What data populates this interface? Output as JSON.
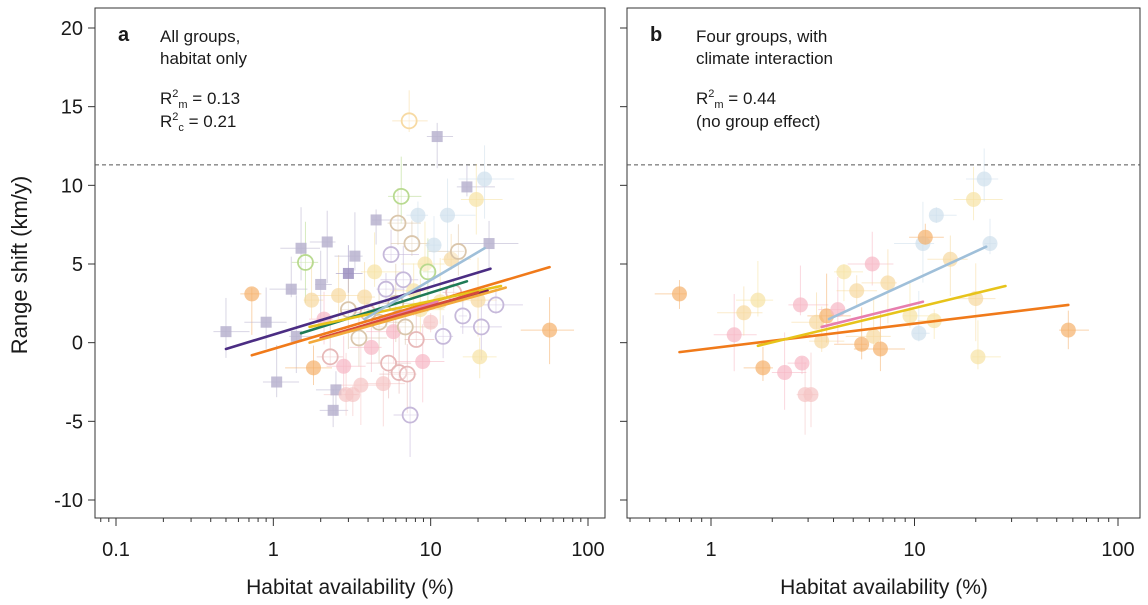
{
  "y_axis_label": "Range shift (km/y)",
  "y_ticks": [
    20,
    15,
    10,
    5,
    0,
    -5,
    -10
  ],
  "y_tick_labels": [
    "20",
    "15",
    "10",
    "5",
    "0",
    "-5",
    "-10"
  ],
  "x_ticks": [
    0.1,
    1,
    10,
    100
  ],
  "x_tick_labels": [
    "0.1",
    "1",
    "10",
    "100"
  ],
  "chart_data": [
    {
      "type": "scatter",
      "panel_letter": "a",
      "title_line1": "All groups,",
      "title_line2": "habitat only",
      "stat1_base": "R",
      "stat1_sup": "2",
      "stat1_sub": "m",
      "stat1_val": " = 0.13",
      "stat2_base": "R",
      "stat2_sup": "2",
      "stat2_sub": "c",
      "stat2_val": " = 0.21",
      "xlabel": "Habitat availability (%)",
      "ylabel": "Range shift (km/y)",
      "x_scale": "log",
      "xlim": [
        0.06,
        130
      ],
      "ylim": [
        -11,
        21
      ],
      "reference_line_y": 11.3,
      "points": [
        {
          "x": 0.73,
          "y": 3.1,
          "shape": "circle",
          "color": "#f5b06b"
        },
        {
          "x": 0.5,
          "y": 0.7,
          "shape": "square",
          "color": "#b9b3cf"
        },
        {
          "x": 0.9,
          "y": 1.3,
          "shape": "square",
          "color": "#b9b3cf"
        },
        {
          "x": 1.05,
          "y": -2.5,
          "shape": "square",
          "color": "#b9b3cf"
        },
        {
          "x": 1.3,
          "y": 3.4,
          "shape": "square",
          "color": "#b9b3cf"
        },
        {
          "x": 1.4,
          "y": 0.4,
          "shape": "square",
          "color": "#b9b3cf"
        },
        {
          "x": 1.5,
          "y": 6.0,
          "shape": "square",
          "color": "#b9b3cf"
        },
        {
          "x": 1.6,
          "y": 5.1,
          "shape": "open",
          "color": "#b6d98c"
        },
        {
          "x": 1.75,
          "y": 2.7,
          "shape": "circle",
          "color": "#f7d9a0"
        },
        {
          "x": 1.8,
          "y": -1.6,
          "shape": "circle",
          "color": "#f5b06b"
        },
        {
          "x": 2.0,
          "y": 3.7,
          "shape": "square",
          "color": "#b9b3cf"
        },
        {
          "x": 2.1,
          "y": 1.5,
          "shape": "circle",
          "color": "#f7b7c4"
        },
        {
          "x": 2.3,
          "y": -0.9,
          "shape": "open",
          "color": "#e6b6b6"
        },
        {
          "x": 2.2,
          "y": 6.4,
          "shape": "square",
          "color": "#b9b3cf"
        },
        {
          "x": 2.4,
          "y": -4.3,
          "shape": "square",
          "color": "#b9b3cf"
        },
        {
          "x": 2.5,
          "y": -3.0,
          "shape": "square",
          "color": "#b9b3cf"
        },
        {
          "x": 2.6,
          "y": 3.0,
          "shape": "circle",
          "color": "#f7d9a0"
        },
        {
          "x": 2.8,
          "y": -1.5,
          "shape": "circle",
          "color": "#f7b7c4"
        },
        {
          "x": 2.9,
          "y": -3.3,
          "shape": "circle",
          "color": "#f5c4c4"
        },
        {
          "x": 3.0,
          "y": 4.4,
          "shape": "square",
          "color": "#9b8fbf"
        },
        {
          "x": 3.0,
          "y": 2.1,
          "shape": "open",
          "color": "#d9c4a8"
        },
        {
          "x": 3.2,
          "y": -3.3,
          "shape": "circle",
          "color": "#f5c4c4"
        },
        {
          "x": 3.3,
          "y": 5.5,
          "shape": "square",
          "color": "#b9b3cf"
        },
        {
          "x": 3.5,
          "y": 0.3,
          "shape": "open",
          "color": "#d9c4a8"
        },
        {
          "x": 3.6,
          "y": -2.7,
          "shape": "circle",
          "color": "#f5c4c4"
        },
        {
          "x": 3.8,
          "y": 2.9,
          "shape": "circle",
          "color": "#f7d9a0"
        },
        {
          "x": 4.0,
          "y": 1.9,
          "shape": "open",
          "color": "#e6b6b6"
        },
        {
          "x": 4.2,
          "y": -0.3,
          "shape": "circle",
          "color": "#f7b7c4"
        },
        {
          "x": 4.4,
          "y": 4.5,
          "shape": "circle",
          "color": "#f7e3a4"
        },
        {
          "x": 4.5,
          "y": 7.8,
          "shape": "square",
          "color": "#b9b3cf"
        },
        {
          "x": 4.7,
          "y": 1.3,
          "shape": "open",
          "color": "#d9c4a8"
        },
        {
          "x": 5.0,
          "y": -2.6,
          "shape": "circle",
          "color": "#f5c4c4"
        },
        {
          "x": 5.2,
          "y": 3.4,
          "shape": "open",
          "color": "#c4b6d9"
        },
        {
          "x": 5.4,
          "y": -1.3,
          "shape": "open",
          "color": "#e6b6b6"
        },
        {
          "x": 5.6,
          "y": 5.6,
          "shape": "open",
          "color": "#c4b6d9"
        },
        {
          "x": 5.8,
          "y": 0.7,
          "shape": "circle",
          "color": "#f7b7c4"
        },
        {
          "x": 6.0,
          "y": 2.5,
          "shape": "open",
          "color": "#d9c4a8"
        },
        {
          "x": 6.2,
          "y": 7.6,
          "shape": "open",
          "color": "#d9c4a8"
        },
        {
          "x": 6.3,
          "y": -1.9,
          "shape": "open",
          "color": "#e6b6b6"
        },
        {
          "x": 6.5,
          "y": 9.3,
          "shape": "open",
          "color": "#b6d98c"
        },
        {
          "x": 6.7,
          "y": 4.0,
          "shape": "open",
          "color": "#c4b6d9"
        },
        {
          "x": 6.9,
          "y": 1.0,
          "shape": "open",
          "color": "#d9c4a8"
        },
        {
          "x": 7.1,
          "y": -2.0,
          "shape": "open",
          "color": "#e6b6b6"
        },
        {
          "x": 7.3,
          "y": 14.1,
          "shape": "open",
          "color": "#f7d9a0"
        },
        {
          "x": 7.4,
          "y": -4.6,
          "shape": "open",
          "color": "#c4b6d9"
        },
        {
          "x": 7.6,
          "y": 6.3,
          "shape": "open",
          "color": "#d9c4a8"
        },
        {
          "x": 7.8,
          "y": 3.3,
          "shape": "circle",
          "color": "#f7e3a4"
        },
        {
          "x": 8.1,
          "y": 0.2,
          "shape": "open",
          "color": "#e6b6b6"
        },
        {
          "x": 8.3,
          "y": 8.1,
          "shape": "circle",
          "color": "#cfe0ec"
        },
        {
          "x": 8.6,
          "y": 2.1,
          "shape": "circle",
          "color": "#f7e3a4"
        },
        {
          "x": 8.9,
          "y": -1.2,
          "shape": "circle",
          "color": "#f7b7c4"
        },
        {
          "x": 9.2,
          "y": 5.0,
          "shape": "circle",
          "color": "#f7e3a4"
        },
        {
          "x": 9.6,
          "y": 4.5,
          "shape": "open",
          "color": "#b6d98c"
        },
        {
          "x": 10.0,
          "y": 1.3,
          "shape": "circle",
          "color": "#f5c4c4"
        },
        {
          "x": 10.5,
          "y": 6.2,
          "shape": "circle",
          "color": "#cfe0ec"
        },
        {
          "x": 11.0,
          "y": 13.1,
          "shape": "square",
          "color": "#b9b3cf"
        },
        {
          "x": 11.5,
          "y": 2.6,
          "shape": "circle",
          "color": "#f7e3a4"
        },
        {
          "x": 12.0,
          "y": 0.4,
          "shape": "open",
          "color": "#c4b6d9"
        },
        {
          "x": 12.8,
          "y": 8.1,
          "shape": "circle",
          "color": "#cfe0ec"
        },
        {
          "x": 13.5,
          "y": 5.3,
          "shape": "circle",
          "color": "#f7d9a0"
        },
        {
          "x": 14.0,
          "y": 3.2,
          "shape": "open",
          "color": "#e6b6b6"
        },
        {
          "x": 15.0,
          "y": 5.8,
          "shape": "open",
          "color": "#d9c4a8"
        },
        {
          "x": 16.0,
          "y": 1.7,
          "shape": "open",
          "color": "#c4b6d9"
        },
        {
          "x": 17.0,
          "y": 9.9,
          "shape": "square",
          "color": "#b9b3cf"
        },
        {
          "x": 19.5,
          "y": 9.1,
          "shape": "circle",
          "color": "#f7e3a4"
        },
        {
          "x": 20.0,
          "y": 2.7,
          "shape": "circle",
          "color": "#f7d9a0"
        },
        {
          "x": 20.5,
          "y": -0.9,
          "shape": "circle",
          "color": "#f7e3a4"
        },
        {
          "x": 21.0,
          "y": 1.0,
          "shape": "open",
          "color": "#c4b6d9"
        },
        {
          "x": 22.0,
          "y": 10.4,
          "shape": "circle",
          "color": "#cfe0ec"
        },
        {
          "x": 23.5,
          "y": 6.3,
          "shape": "square",
          "color": "#b9b3cf"
        },
        {
          "x": 26.0,
          "y": 2.4,
          "shape": "open",
          "color": "#c4b6d9"
        },
        {
          "x": 57.0,
          "y": 0.8,
          "shape": "circle",
          "color": "#f5b06b"
        }
      ],
      "regression_lines": [
        {
          "x": [
            0.5,
            24
          ],
          "y": [
            -0.4,
            4.7
          ],
          "color": "#4b2d83"
        },
        {
          "x": [
            0.73,
            57
          ],
          "y": [
            -0.8,
            4.8
          ],
          "color": "#f07a1a"
        },
        {
          "x": [
            1.5,
            17
          ],
          "y": [
            0.6,
            3.9
          ],
          "color": "#1f7a55"
        },
        {
          "x": [
            1.7,
            28
          ],
          "y": [
            1.0,
            3.6
          ],
          "color": "#e7c31a"
        },
        {
          "x": [
            3.0,
            23
          ],
          "y": [
            0.7,
            3.3
          ],
          "color": "#7a1f52"
        },
        {
          "x": [
            3.8,
            22
          ],
          "y": [
            1.5,
            6.0
          ],
          "color": "#9fbfd9"
        },
        {
          "x": [
            3.5,
            11
          ],
          "y": [
            1.0,
            2.6
          ],
          "color": "#e77eae"
        },
        {
          "x": [
            2.0,
            20
          ],
          "y": [
            0.3,
            3.2
          ],
          "color": "#d64a3b"
        },
        {
          "x": [
            1.7,
            30
          ],
          "y": [
            0.0,
            3.5
          ],
          "color": "#f2a93b"
        }
      ]
    },
    {
      "type": "scatter",
      "panel_letter": "b",
      "title_line1": "Four groups, with",
      "title_line2": "climate interaction",
      "stat1_base": "R",
      "stat1_sup": "2",
      "stat1_sub": "m",
      "stat1_val": " = 0.44",
      "stat2_text": "(no group effect)",
      "xlabel": "Habitat availability (%)",
      "x_scale": "log",
      "xlim": [
        0.3,
        130
      ],
      "ylim": [
        -11,
        21
      ],
      "reference_line_y": 11.3,
      "points": [
        {
          "x": 0.7,
          "y": 3.1,
          "shape": "circle",
          "color": "#f5b06b"
        },
        {
          "x": 1.3,
          "y": 0.5,
          "shape": "circle",
          "color": "#f7b7c4"
        },
        {
          "x": 1.45,
          "y": 1.9,
          "shape": "circle",
          "color": "#f7d9a0"
        },
        {
          "x": 1.7,
          "y": 2.7,
          "shape": "circle",
          "color": "#f7e3a4"
        },
        {
          "x": 1.8,
          "y": -1.6,
          "shape": "circle",
          "color": "#f5b06b"
        },
        {
          "x": 2.3,
          "y": -1.9,
          "shape": "circle",
          "color": "#f7b7c4"
        },
        {
          "x": 2.75,
          "y": 2.4,
          "shape": "circle",
          "color": "#f7b7c4"
        },
        {
          "x": 2.8,
          "y": -1.3,
          "shape": "circle",
          "color": "#f7b7c4"
        },
        {
          "x": 2.9,
          "y": -3.3,
          "shape": "circle",
          "color": "#f5c4c4"
        },
        {
          "x": 3.1,
          "y": -3.3,
          "shape": "circle",
          "color": "#f5c4c4"
        },
        {
          "x": 3.3,
          "y": 1.3,
          "shape": "circle",
          "color": "#f7d9a0"
        },
        {
          "x": 3.5,
          "y": 0.1,
          "shape": "circle",
          "color": "#f7d9a0"
        },
        {
          "x": 3.7,
          "y": 1.7,
          "shape": "circle",
          "color": "#f5b06b"
        },
        {
          "x": 4.2,
          "y": 2.1,
          "shape": "circle",
          "color": "#f7b7c4"
        },
        {
          "x": 4.5,
          "y": 4.5,
          "shape": "circle",
          "color": "#f7e3a4"
        },
        {
          "x": 5.2,
          "y": 3.3,
          "shape": "circle",
          "color": "#f7d9a0"
        },
        {
          "x": 5.5,
          "y": -0.1,
          "shape": "circle",
          "color": "#f5b06b"
        },
        {
          "x": 6.2,
          "y": 5.0,
          "shape": "circle",
          "color": "#f7b7c4"
        },
        {
          "x": 6.3,
          "y": 0.4,
          "shape": "circle",
          "color": "#f7d9a0"
        },
        {
          "x": 6.8,
          "y": -0.4,
          "shape": "circle",
          "color": "#f5b06b"
        },
        {
          "x": 7.4,
          "y": 3.8,
          "shape": "circle",
          "color": "#f7d9a0"
        },
        {
          "x": 9.5,
          "y": 1.7,
          "shape": "circle",
          "color": "#f7e3a4"
        },
        {
          "x": 10.5,
          "y": 0.6,
          "shape": "circle",
          "color": "#cfe0ec"
        },
        {
          "x": 11.0,
          "y": 6.3,
          "shape": "circle",
          "color": "#cfe0ec"
        },
        {
          "x": 11.3,
          "y": 6.7,
          "shape": "circle",
          "color": "#f5b06b"
        },
        {
          "x": 12.5,
          "y": 1.4,
          "shape": "circle",
          "color": "#f7e3a4"
        },
        {
          "x": 12.8,
          "y": 8.1,
          "shape": "circle",
          "color": "#cfe0ec"
        },
        {
          "x": 15.0,
          "y": 5.3,
          "shape": "circle",
          "color": "#f7d9a0"
        },
        {
          "x": 19.5,
          "y": 9.1,
          "shape": "circle",
          "color": "#f7e3a4"
        },
        {
          "x": 20.0,
          "y": 2.8,
          "shape": "circle",
          "color": "#f7d9a0"
        },
        {
          "x": 20.5,
          "y": -0.9,
          "shape": "circle",
          "color": "#f7e3a4"
        },
        {
          "x": 22.0,
          "y": 10.4,
          "shape": "circle",
          "color": "#cfe0ec"
        },
        {
          "x": 23.5,
          "y": 6.3,
          "shape": "circle",
          "color": "#cfe0ec"
        },
        {
          "x": 57.0,
          "y": 0.8,
          "shape": "circle",
          "color": "#f5b06b"
        }
      ],
      "regression_lines": [
        {
          "x": [
            0.7,
            57
          ],
          "y": [
            -0.6,
            2.4
          ],
          "color": "#f07a1a"
        },
        {
          "x": [
            3.8,
            22.5
          ],
          "y": [
            1.5,
            6.1
          ],
          "color": "#9fbfd9"
        },
        {
          "x": [
            1.7,
            28
          ],
          "y": [
            -0.2,
            3.6
          ],
          "color": "#e7c31a"
        },
        {
          "x": [
            3.5,
            11
          ],
          "y": [
            1.0,
            2.6
          ],
          "color": "#e77eae"
        }
      ]
    }
  ]
}
